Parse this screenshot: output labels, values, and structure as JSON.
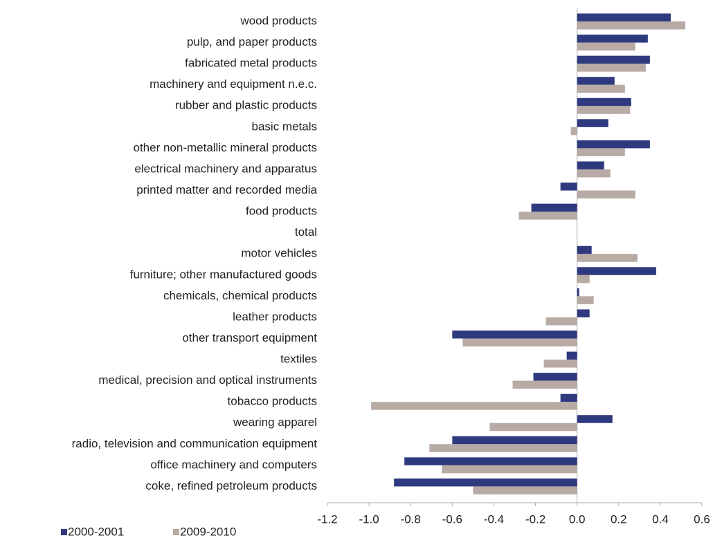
{
  "chart_data": {
    "type": "bar",
    "orientation": "horizontal",
    "categories": [
      "wood products",
      "pulp, and paper products",
      "fabricated metal products",
      "machinery and equipment n.e.c.",
      "rubber and plastic products",
      "basic metals",
      "other non-metallic mineral products",
      "electrical machinery and apparatus",
      "printed matter and recorded media",
      "food products",
      "total",
      "motor vehicles",
      "furniture; other manufactured goods",
      "chemicals, chemical products",
      "leather products",
      "other transport equipment",
      "textiles",
      "medical, precision and optical instruments",
      "tobacco products",
      "wearing apparel",
      "radio, television and communication equipment",
      "office machinery and computers",
      "coke, refined petroleum products"
    ],
    "series": [
      {
        "name": "2000-2001",
        "color": "#2f3a7e",
        "values": [
          0.45,
          0.34,
          0.35,
          0.18,
          0.26,
          0.15,
          0.35,
          0.13,
          -0.08,
          -0.22,
          0,
          0.07,
          0.38,
          0.01,
          0.06,
          -0.6,
          -0.05,
          -0.21,
          -0.08,
          0.17,
          -0.6,
          -0.83,
          -0.88
        ]
      },
      {
        "name": "2009-2010",
        "color": "#b8aaa4",
        "values": [
          0.52,
          0.28,
          0.33,
          0.23,
          0.255,
          -0.03,
          0.23,
          0.16,
          0.28,
          -0.28,
          0,
          0.29,
          0.06,
          0.08,
          -0.15,
          -0.55,
          -0.16,
          -0.31,
          -0.99,
          -0.42,
          -0.71,
          -0.65,
          -0.5
        ]
      }
    ],
    "xlim": [
      -1.2,
      0.6
    ],
    "xticks": [
      -1.2,
      {
        "value": -1,
        "label": "-1.0"
      },
      -0.8,
      -0.6,
      -0.4,
      -0.2,
      {
        "value": 0,
        "label": "0.0"
      },
      0.2,
      0.4,
      0.6
    ],
    "grid": false,
    "legend": "bottom-left"
  }
}
